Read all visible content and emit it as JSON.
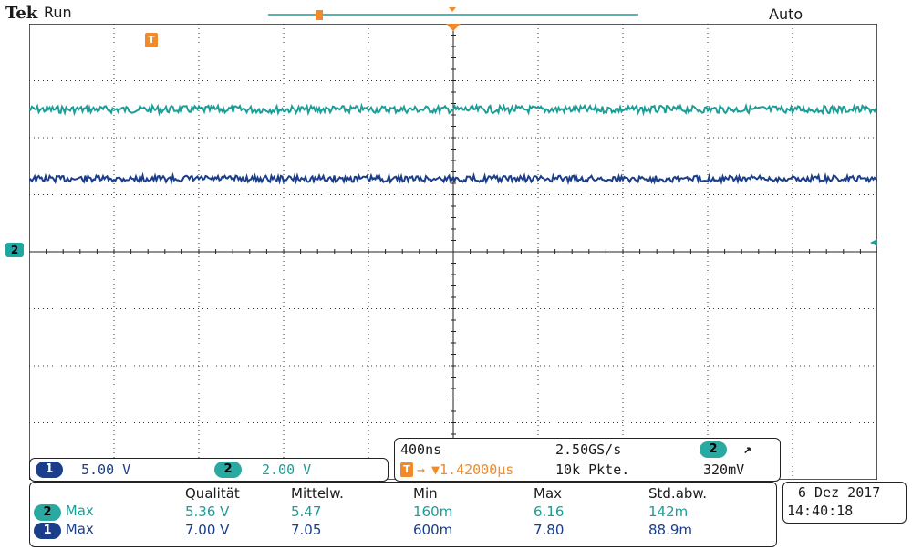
{
  "header": {
    "brand": "Tek",
    "status": "Run",
    "trigger_mode": "Auto"
  },
  "markers": {
    "trigger_label": "T",
    "channel2_ground": "2"
  },
  "channels": [
    {
      "id": "1",
      "scale": "5.00 V",
      "color": "#1a3e8a"
    },
    {
      "id": "2",
      "scale": "2.00 V",
      "color": "#1c9e97"
    }
  ],
  "timebase": {
    "scale": "400ns",
    "sample_rate": "2.50GS/s",
    "trigger_channel": "2",
    "trigger_slope": "↗",
    "trigger_offset": "▼1.42000µs",
    "record_length": "10k Pkte.",
    "trigger_level": "320mV"
  },
  "measurements": {
    "headers": [
      "Qualität",
      "Mittelw.",
      "Min",
      "Max",
      "Std.abw."
    ],
    "rows": [
      {
        "channel": "2",
        "type": "Max",
        "values": [
          "5.36 V",
          "5.47",
          "160m",
          "6.16",
          "142m"
        ]
      },
      {
        "channel": "1",
        "type": "Max",
        "values": [
          "7.00 V",
          "7.05",
          "600m",
          "7.80",
          "88.9m"
        ]
      }
    ]
  },
  "datetime": {
    "date": "6 Dez  2017",
    "time": "14:40:18"
  },
  "colors": {
    "ch1": "#1a3e8a",
    "ch2": "#1c9e97",
    "trigger": "#f08a2a",
    "grid": "#222222"
  }
}
